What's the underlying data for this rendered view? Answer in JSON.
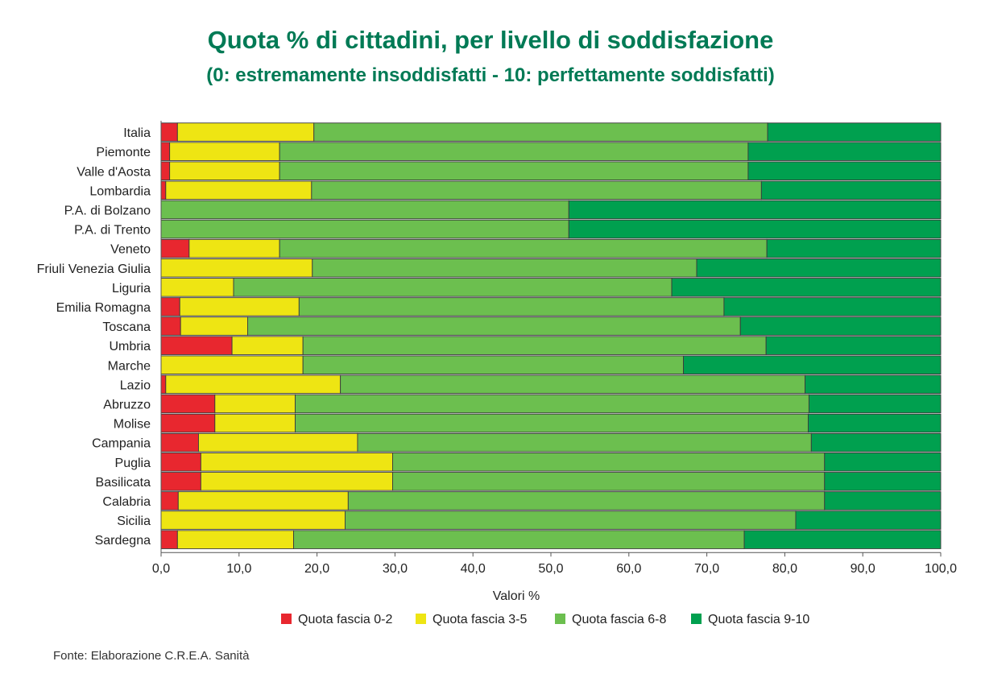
{
  "title": "Quota % di cittadini, per livello di soddisfazione",
  "subtitle": "(0: estremamente insoddisfatti - 10: perfettamente soddisfatti)",
  "source": "Fonte: Elaborazione C.R.E.A. Sanità",
  "colors": {
    "title": "#007a55",
    "s0": "#e8272f",
    "s1": "#eee513",
    "s2": "#6cbf4f",
    "s3": "#00a04f"
  },
  "chart_data": {
    "type": "bar",
    "orientation": "horizontal",
    "stacked": true,
    "title": "Quota % di cittadini, per livello di soddisfazione",
    "subtitle": "(0: estremamente insoddisfatti - 10: perfettamente soddisfatti)",
    "xlabel": "Valori %",
    "ylabel": "",
    "xlim": [
      0,
      100
    ],
    "xticks": [
      "0,0",
      "10,0",
      "20,0",
      "30,0",
      "40,0",
      "50,0",
      "60,0",
      "70,0",
      "80,0",
      "90,0",
      "100,0"
    ],
    "legend_position": "bottom",
    "grid": false,
    "categories": [
      "Italia",
      "Piemonte",
      "Valle d'Aosta",
      "Lombardia",
      "P.A. di Bolzano",
      "P.A. di Trento",
      "Veneto",
      "Friuli Venezia Giulia",
      "Liguria",
      "Emilia Romagna",
      "Toscana",
      "Umbria",
      "Marche",
      "Lazio",
      "Abruzzo",
      "Molise",
      "Campania",
      "Puglia",
      "Basilicata",
      "Calabria",
      "Sicilia",
      "Sardegna"
    ],
    "series": [
      {
        "name": "Quota fascia 0-2",
        "color": "#e8272f",
        "values": [
          2.1,
          1.1,
          1.1,
          0.6,
          0.0,
          0.0,
          3.6,
          0.0,
          0.0,
          2.4,
          2.5,
          9.1,
          0.0,
          0.6,
          6.9,
          6.9,
          4.8,
          5.1,
          5.1,
          2.2,
          0.0,
          2.1
        ]
      },
      {
        "name": "Quota fascia 3-5",
        "color": "#eee513",
        "values": [
          17.5,
          14.1,
          14.1,
          18.7,
          0.0,
          0.0,
          11.6,
          19.4,
          9.3,
          15.3,
          8.6,
          9.1,
          18.2,
          22.4,
          10.3,
          10.3,
          20.4,
          24.6,
          24.6,
          21.8,
          23.6,
          14.9
        ]
      },
      {
        "name": "Quota fascia 6-8",
        "color": "#6cbf4f",
        "values": [
          58.2,
          60.1,
          60.1,
          57.7,
          52.3,
          52.3,
          62.5,
          49.3,
          56.2,
          54.5,
          63.2,
          59.4,
          48.8,
          59.6,
          65.9,
          65.8,
          58.2,
          55.4,
          55.4,
          61.1,
          57.8,
          57.8
        ]
      },
      {
        "name": "Quota fascia 9-10",
        "color": "#00a04f",
        "values": [
          22.2,
          24.7,
          24.7,
          23.0,
          47.7,
          47.7,
          22.3,
          31.3,
          34.5,
          27.8,
          25.7,
          22.4,
          33.0,
          17.4,
          16.9,
          17.0,
          16.6,
          14.9,
          14.9,
          14.9,
          18.6,
          25.2
        ]
      }
    ]
  }
}
